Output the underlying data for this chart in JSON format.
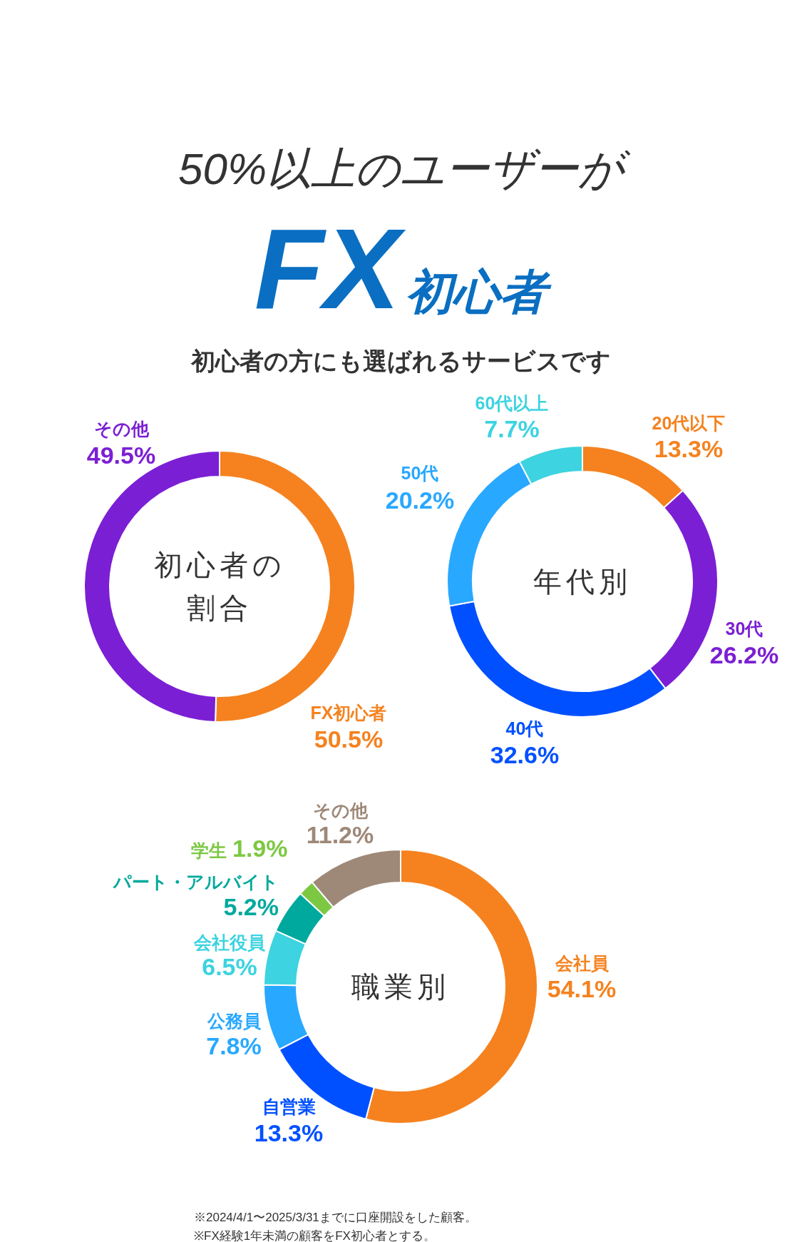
{
  "chart_data": [
    {
      "type": "donut",
      "title": "初心者の割合",
      "annotations": [
        "50%以上のユーザーが",
        "FX",
        "初心者",
        "初心者の方にも選ばれるサービスです"
      ],
      "categories": [
        "FX初心者",
        "その他"
      ],
      "values": [
        50.5,
        49.5
      ],
      "value_labels": [
        "50.5%",
        "49.5%"
      ],
      "colors": [
        "#f5821f",
        "#7b1fd4"
      ]
    },
    {
      "type": "donut",
      "title": "年代別",
      "categories": [
        "20代以下",
        "30代",
        "40代",
        "50代",
        "60代以上"
      ],
      "values": [
        13.3,
        26.2,
        32.6,
        20.2,
        7.7
      ],
      "value_labels": [
        "13.3%",
        "26.2%",
        "32.6%",
        "20.2%",
        "7.7%"
      ],
      "colors": [
        "#f5821f",
        "#7b1fd4",
        "#0050ff",
        "#29a8ff",
        "#3dd3e0"
      ]
    },
    {
      "type": "donut",
      "title": "職業別",
      "annotations": [
        "※2024/4/1〜2025/3/31までに口座開設をした顧客。",
        "※FX経験1年未満の顧客をFX初心者とする。"
      ],
      "categories": [
        "会社員",
        "自営業",
        "公務員",
        "会社役員",
        "パート・アルバイト",
        "学生",
        "その他"
      ],
      "values": [
        54.1,
        13.3,
        7.8,
        6.5,
        5.2,
        1.9,
        11.2
      ],
      "value_labels": [
        "54.1%",
        "13.3%",
        "7.8%",
        "6.5%",
        "5.2%",
        "1.9%",
        "11.2%"
      ],
      "colors": [
        "#f5821f",
        "#0050ff",
        "#29a8ff",
        "#3dd3e0",
        "#00a99d",
        "#7dc843",
        "#9e8878"
      ]
    }
  ]
}
